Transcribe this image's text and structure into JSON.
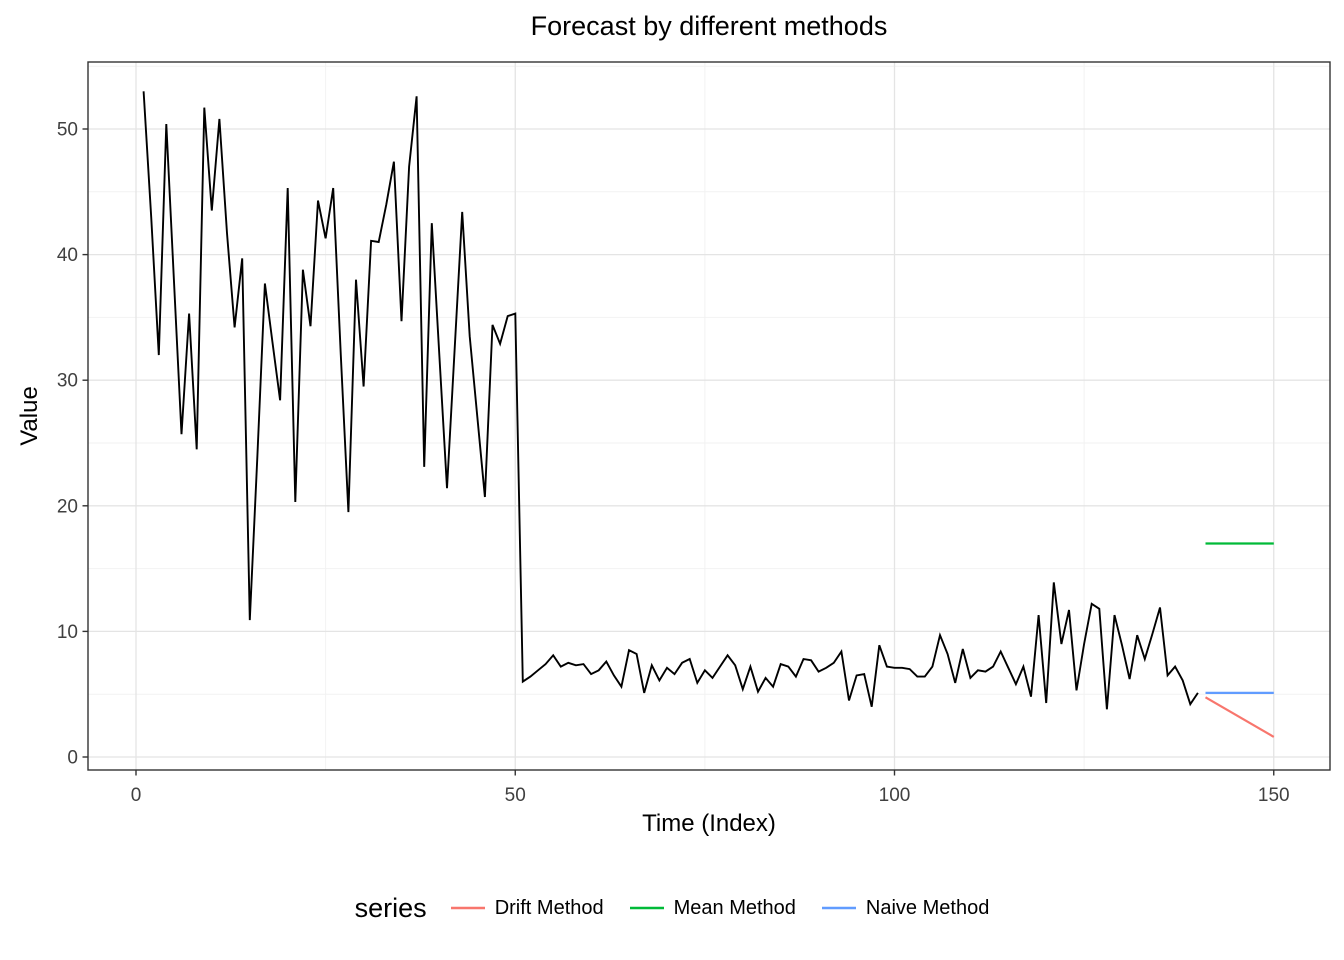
{
  "title": "Forecast by different methods",
  "axes": {
    "x": {
      "label": "Time (Index)",
      "ticks": [
        0,
        50,
        100,
        150
      ],
      "minor_ticks": [
        25,
        75,
        125
      ]
    },
    "y": {
      "label": "Value",
      "ticks": [
        0,
        10,
        20,
        30,
        40,
        50
      ],
      "minor_ticks": [
        5,
        15,
        25,
        35,
        45,
        55
      ]
    }
  },
  "legend": {
    "title": "series",
    "items": [
      {
        "label": "Drift Method",
        "color": "#F8766D"
      },
      {
        "label": "Mean Method",
        "color": "#00BA38"
      },
      {
        "label": "Naive Method",
        "color": "#619CFF"
      }
    ]
  },
  "colors": {
    "observed": "#000000",
    "grid_major": "#E4E4E4",
    "grid_minor": "#F2F2F2",
    "panel_border": "#333333",
    "tick_text": "#404040"
  },
  "chart_data": {
    "type": "line",
    "title": "Forecast by different methods",
    "xlabel": "Time (Index)",
    "ylabel": "Value",
    "xlim": [
      -6.45,
      157.45
    ],
    "ylim": [
      -1.05,
      55.55
    ],
    "grid": true,
    "legend_position": "bottom",
    "series": [
      {
        "name": "observed",
        "color": "#000000",
        "width": 1.9,
        "x_start": 1,
        "values": [
          53.0,
          43.0,
          32.0,
          50.4,
          38.0,
          25.7,
          35.3,
          24.5,
          51.7,
          43.5,
          50.8,
          41.7,
          34.2,
          39.7,
          10.9,
          24.0,
          37.7,
          33.0,
          28.4,
          45.3,
          20.3,
          38.8,
          34.3,
          44.3,
          41.3,
          45.3,
          32.0,
          19.5,
          38.0,
          29.5,
          41.1,
          41.0,
          44.0,
          47.4,
          34.7,
          47.0,
          52.6,
          23.1,
          42.5,
          31.9,
          21.4,
          32.4,
          43.4,
          33.5,
          27.1,
          20.7,
          34.4,
          32.9,
          35.1,
          35.3,
          6.0,
          6.4,
          6.9,
          7.4,
          8.1,
          7.2,
          7.5,
          7.3,
          7.4,
          6.6,
          6.9,
          7.6,
          6.5,
          5.6,
          8.5,
          8.2,
          5.1,
          7.3,
          6.1,
          7.1,
          6.6,
          7.5,
          7.8,
          5.9,
          6.9,
          6.3,
          7.2,
          8.1,
          7.3,
          5.4,
          7.2,
          5.2,
          6.3,
          5.6,
          7.4,
          7.2,
          6.4,
          7.8,
          7.7,
          6.8,
          7.1,
          7.5,
          8.4,
          4.5,
          6.5,
          6.6,
          4.0,
          8.9,
          7.2,
          7.1,
          7.1,
          7.0,
          6.4,
          6.4,
          7.2,
          9.7,
          8.2,
          5.9,
          8.6,
          6.3,
          6.9,
          6.8,
          7.2,
          8.4,
          7.1,
          5.8,
          7.2,
          4.8,
          11.3,
          4.3,
          13.9,
          9.0,
          11.7,
          5.3,
          9.0,
          12.2,
          11.8,
          3.8,
          11.3,
          8.9,
          6.2,
          9.7,
          7.8,
          9.8,
          11.9,
          6.5,
          7.2,
          6.1,
          4.2,
          5.1
        ]
      },
      {
        "name": "Drift Method",
        "color": "#F8766D",
        "width": 2.2,
        "x": [
          141,
          150
        ],
        "values": [
          4.75,
          1.6
        ]
      },
      {
        "name": "Mean Method",
        "color": "#00BA38",
        "width": 2.2,
        "x": [
          141,
          150
        ],
        "values": [
          17.0,
          17.0
        ]
      },
      {
        "name": "Naive Method",
        "color": "#619CFF",
        "width": 2.2,
        "x": [
          141,
          150
        ],
        "values": [
          5.1,
          5.1
        ]
      }
    ]
  }
}
